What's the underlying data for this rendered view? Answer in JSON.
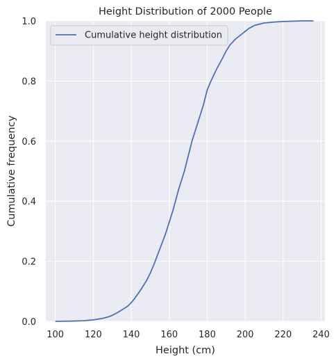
{
  "chart_data": {
    "type": "line",
    "title": "Height Distribution of 2000 People",
    "xlabel": "Height (cm)",
    "ylabel": "Cumulative frequency",
    "xlim": [
      95,
      242
    ],
    "ylim": [
      0,
      1
    ],
    "xticks": [
      100,
      120,
      140,
      160,
      180,
      200,
      220,
      240
    ],
    "yticks": [
      0.0,
      0.2,
      0.4,
      0.6,
      0.8,
      1.0
    ],
    "ytick_labels": [
      "0.0",
      "0.2",
      "0.4",
      "0.6",
      "0.8",
      "1.0"
    ],
    "grid": true,
    "legend_position": "upper-left",
    "series": [
      {
        "name": "Cumulative height distribution",
        "color": "#4c72b0",
        "x": [
          100,
          110,
          115,
          120,
          125,
          128,
          130,
          133,
          135,
          138,
          140,
          142,
          145,
          148,
          150,
          152,
          155,
          158,
          160,
          162,
          165,
          168,
          170,
          172,
          175,
          178,
          180,
          182,
          185,
          188,
          190,
          192,
          195,
          198,
          200,
          202,
          205,
          208,
          210,
          215,
          220,
          225,
          230,
          236
        ],
        "y": [
          0.0,
          0.001,
          0.002,
          0.005,
          0.01,
          0.015,
          0.02,
          0.03,
          0.038,
          0.05,
          0.062,
          0.078,
          0.105,
          0.135,
          0.16,
          0.19,
          0.24,
          0.29,
          0.33,
          0.37,
          0.44,
          0.5,
          0.55,
          0.6,
          0.66,
          0.72,
          0.77,
          0.8,
          0.84,
          0.875,
          0.9,
          0.92,
          0.94,
          0.955,
          0.965,
          0.975,
          0.985,
          0.99,
          0.993,
          0.996,
          0.998,
          0.999,
          1.0,
          1.0
        ]
      }
    ]
  },
  "colors": {
    "plot_background": "#eaeaf2",
    "grid": "#ffffff",
    "line": "#4c72b0"
  }
}
